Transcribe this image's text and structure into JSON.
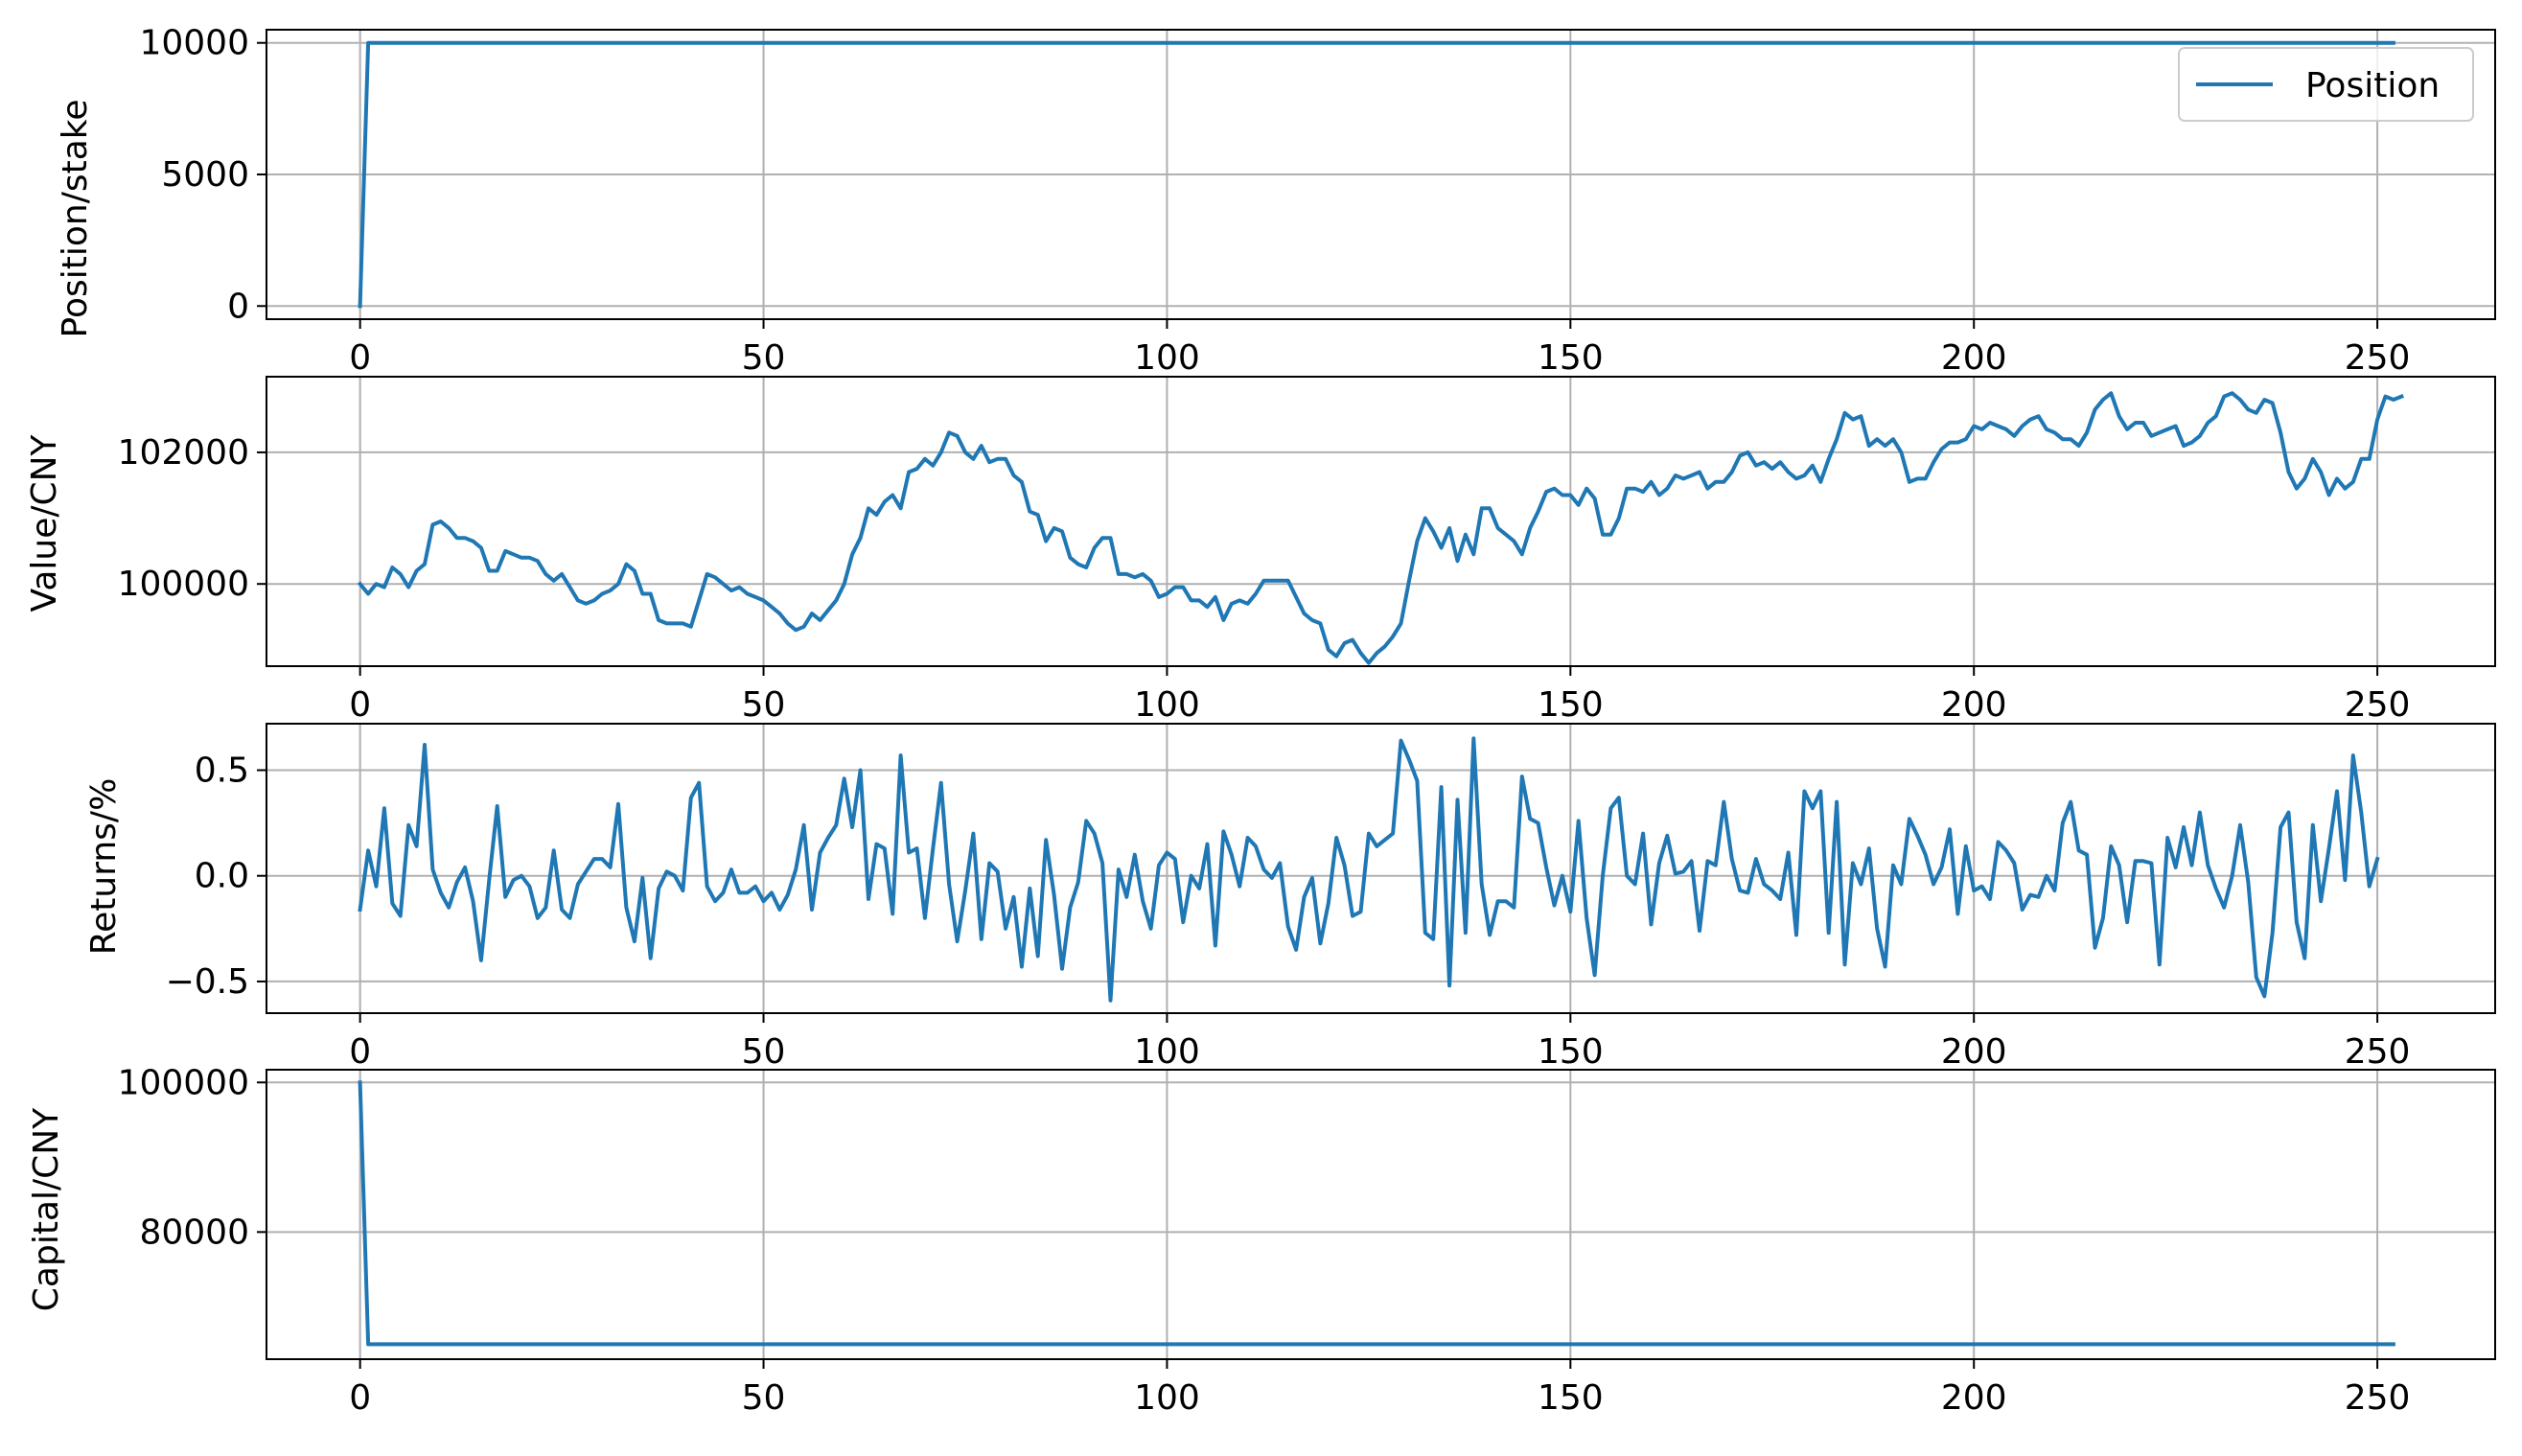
{
  "chart_data": [
    {
      "type": "line",
      "ylabel": "Position/stake",
      "xlim": [
        -11.6,
        264.6
      ],
      "ylim": [
        -500,
        10500
      ],
      "xticks": [
        0,
        50,
        100,
        150,
        200,
        250
      ],
      "xtick_labels": [
        "0",
        "50",
        "100",
        "150",
        "200",
        "250"
      ],
      "yticks": [
        0,
        5000,
        10000
      ],
      "ytick_labels": [
        "0",
        "5000",
        "10000"
      ],
      "grid": true,
      "legend": {
        "placement": "upper right",
        "entries": [
          "Position"
        ]
      },
      "series": [
        {
          "name": "Position",
          "color": "#1f77b4",
          "x": [
            0,
            1,
            252
          ],
          "y": [
            0,
            10000,
            10000
          ]
        }
      ]
    },
    {
      "type": "line",
      "ylabel": "Value/CNY",
      "xlim": [
        -11.6,
        264.6
      ],
      "ylim": [
        98750,
        103150
      ],
      "xticks": [
        0,
        50,
        100,
        150,
        200,
        250
      ],
      "xtick_labels": [
        "0",
        "50",
        "100",
        "150",
        "200",
        "250"
      ],
      "yticks": [
        100000,
        102000
      ],
      "ytick_labels": [
        "100000",
        "102000"
      ],
      "grid": true,
      "series": [
        {
          "color": "#1f77b4",
          "x_start": 0,
          "y": [
            100000,
            99850,
            100000,
            99950,
            100250,
            100150,
            99950,
            100200,
            100300,
            100900,
            100950,
            100850,
            100700,
            100700,
            100650,
            100550,
            100200,
            100200,
            100500,
            100450,
            100400,
            100400,
            100350,
            100150,
            100050,
            100150,
            99950,
            99750,
            99700,
            99750,
            99850,
            99900,
            100000,
            100300,
            100200,
            99850,
            99850,
            99450,
            99400,
            99400,
            99400,
            99350,
            99750,
            100150,
            100100,
            100000,
            99900,
            99950,
            99850,
            99800,
            99750,
            99650,
            99550,
            99400,
            99300,
            99350,
            99550,
            99450,
            99600,
            99750,
            100000,
            100450,
            100700,
            101150,
            101050,
            101250,
            101350,
            101150,
            101700,
            101750,
            101900,
            101800,
            102000,
            102300,
            102250,
            102000,
            101900,
            102100,
            101850,
            101900,
            101900,
            101650,
            101550,
            101100,
            101050,
            100650,
            100850,
            100800,
            100400,
            100300,
            100250,
            100550,
            100700,
            100700,
            100150,
            100150,
            100100,
            100150,
            100050,
            99800,
            99850,
            99950,
            99950,
            99750,
            99750,
            99650,
            99800,
            99450,
            99700,
            99750,
            99700,
            99850,
            100050,
            100050,
            100050,
            100050,
            99800,
            99550,
            99450,
            99400,
            99000,
            98900,
            99100,
            99150,
            98950,
            98800,
            98950,
            99050,
            99200,
            99400,
            100050,
            100650,
            101000,
            100800,
            100550,
            100850,
            100350,
            100750,
            100450,
            101150,
            101150,
            100850,
            100750,
            100650,
            100450,
            100850,
            101100,
            101400,
            101450,
            101350,
            101350,
            101200,
            101450,
            101300,
            100750,
            100750,
            101000,
            101450,
            101450,
            101400,
            101550,
            101350,
            101450,
            101650,
            101600,
            101650,
            101700,
            101450,
            101550,
            101550,
            101700,
            101950,
            102000,
            101800,
            101850,
            101750,
            101850,
            101700,
            101600,
            101650,
            101800,
            101550,
            101900,
            102200,
            102600,
            102500,
            102550,
            102100,
            102200,
            102100,
            102200,
            102000,
            101550,
            101600,
            101600,
            101850,
            102050,
            102150,
            102150,
            102200,
            102400,
            102350,
            102450,
            102400,
            102350,
            102250,
            102400,
            102500,
            102550,
            102350,
            102300,
            102200,
            102200,
            102100,
            102300,
            102650,
            102800,
            102900,
            102550,
            102350,
            102450,
            102450,
            102250,
            102300,
            102350,
            102400,
            102100,
            102150,
            102250,
            102450,
            102550,
            102850,
            102900,
            102800,
            102650,
            102600,
            102800,
            102750,
            102300,
            101700,
            101450,
            101600,
            101900,
            101700,
            101350,
            101600,
            101450,
            101550,
            101900,
            101900,
            102500,
            102850,
            102800,
            102850
          ]
        }
      ]
    },
    {
      "type": "line",
      "ylabel": "Returns/%",
      "xlim": [
        -11.6,
        264.6
      ],
      "ylim": [
        -0.65,
        0.72
      ],
      "xticks": [
        0,
        50,
        100,
        150,
        200,
        250
      ],
      "xtick_labels": [
        "0",
        "50",
        "100",
        "150",
        "200",
        "250"
      ],
      "yticks": [
        -0.5,
        0.0,
        0.5
      ],
      "ytick_labels": [
        "−0.5",
        "0.0",
        "0.5"
      ],
      "grid": true,
      "series": [
        {
          "color": "#1f77b4",
          "x_start": 0,
          "y": [
            -0.16,
            0.12,
            -0.05,
            0.32,
            -0.13,
            -0.19,
            0.24,
            0.14,
            0.62,
            0.03,
            -0.08,
            -0.15,
            -0.03,
            0.04,
            -0.12,
            -0.4,
            -0.02,
            0.33,
            -0.1,
            -0.02,
            0.0,
            -0.05,
            -0.2,
            -0.15,
            0.12,
            -0.16,
            -0.2,
            -0.04,
            0.02,
            0.08,
            0.08,
            0.04,
            0.34,
            -0.15,
            -0.31,
            -0.01,
            -0.39,
            -0.06,
            0.02,
            0.0,
            -0.07,
            0.37,
            0.44,
            -0.05,
            -0.12,
            -0.08,
            0.03,
            -0.08,
            -0.08,
            -0.05,
            -0.12,
            -0.08,
            -0.16,
            -0.09,
            0.03,
            0.24,
            -0.16,
            0.11,
            0.18,
            0.24,
            0.46,
            0.23,
            0.5,
            -0.11,
            0.15,
            0.13,
            -0.18,
            0.57,
            0.11,
            0.13,
            -0.2,
            0.13,
            0.44,
            -0.04,
            -0.31,
            -0.07,
            0.2,
            -0.3,
            0.06,
            0.02,
            -0.25,
            -0.1,
            -0.43,
            -0.06,
            -0.38,
            0.17,
            -0.09,
            -0.44,
            -0.15,
            -0.03,
            0.26,
            0.2,
            0.06,
            -0.59,
            0.03,
            -0.1,
            0.1,
            -0.12,
            -0.25,
            0.05,
            0.11,
            0.08,
            -0.22,
            0.0,
            -0.06,
            0.15,
            -0.33,
            0.21,
            0.1,
            -0.05,
            0.18,
            0.14,
            0.03,
            -0.01,
            0.06,
            -0.24,
            -0.35,
            -0.1,
            -0.01,
            -0.32,
            -0.13,
            0.18,
            0.05,
            -0.19,
            -0.17,
            0.2,
            0.14,
            0.17,
            0.2,
            0.64,
            0.55,
            0.45,
            -0.27,
            -0.3,
            0.42,
            -0.52,
            0.36,
            -0.27,
            0.65,
            -0.04,
            -0.28,
            -0.12,
            -0.12,
            -0.15,
            0.47,
            0.27,
            0.25,
            0.04,
            -0.14,
            0.0,
            -0.17,
            0.26,
            -0.2,
            -0.47,
            0.0,
            0.32,
            0.37,
            0.0,
            -0.04,
            0.2,
            -0.23,
            0.06,
            0.19,
            0.01,
            0.02,
            0.07,
            -0.26,
            0.07,
            0.05,
            0.35,
            0.08,
            -0.07,
            -0.08,
            0.08,
            -0.04,
            -0.07,
            -0.11,
            0.11,
            -0.28,
            0.4,
            0.32,
            0.4,
            -0.27,
            0.35,
            -0.42,
            0.06,
            -0.04,
            0.13,
            -0.25,
            -0.43,
            0.05,
            -0.04,
            0.27,
            0.19,
            0.1,
            -0.04,
            0.04,
            0.22,
            -0.18,
            0.14,
            -0.07,
            -0.05,
            -0.11,
            0.16,
            0.12,
            0.06,
            -0.16,
            -0.09,
            -0.1,
            0.0,
            -0.07,
            0.25,
            0.35,
            0.12,
            0.1,
            -0.34,
            -0.2,
            0.14,
            0.05,
            -0.22,
            0.07,
            0.07,
            0.06,
            -0.42,
            0.18,
            0.04,
            0.23,
            0.05,
            0.3,
            0.05,
            -0.06,
            -0.15,
            0.0,
            0.24,
            -0.03,
            -0.48,
            -0.57,
            -0.27,
            0.23,
            0.3,
            -0.22,
            -0.39,
            0.24,
            -0.12,
            0.13,
            0.4,
            -0.02,
            0.57,
            0.3,
            -0.05,
            0.08
          ]
        }
      ]
    },
    {
      "type": "line",
      "ylabel": "Capital/CNY",
      "xlim": [
        -11.6,
        264.6
      ],
      "ylim": [
        63000,
        101700
      ],
      "xticks": [
        0,
        50,
        100,
        150,
        200,
        250
      ],
      "xtick_labels": [
        "0",
        "50",
        "100",
        "150",
        "200",
        "250"
      ],
      "yticks": [
        80000
      ],
      "ytick_labels": [
        "80000"
      ],
      "extra_ytick": {
        "value": 100000,
        "label": "100000"
      },
      "grid": true,
      "series": [
        {
          "color": "#1f77b4",
          "x": [
            0,
            1,
            252
          ],
          "y": [
            100000,
            65000,
            65000
          ]
        }
      ]
    }
  ],
  "layout_note_free": true
}
